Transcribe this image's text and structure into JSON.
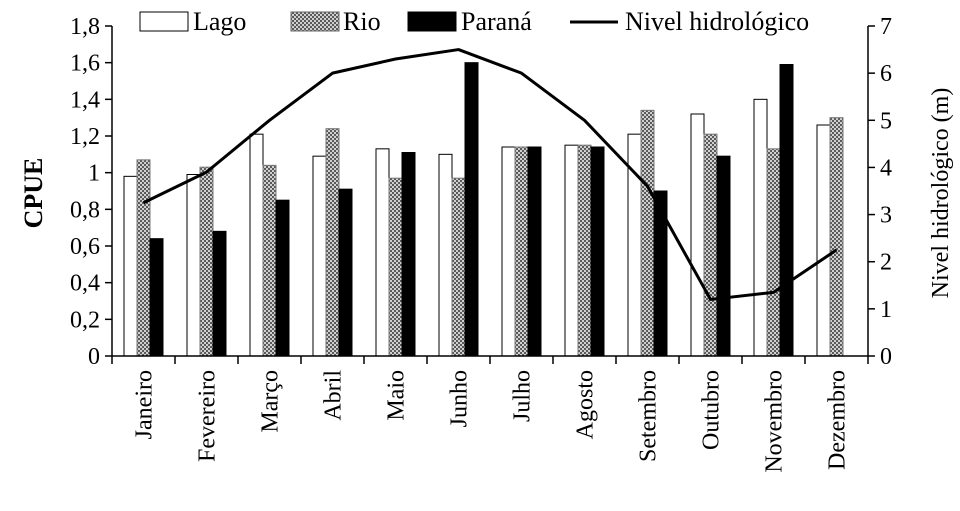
{
  "chart_data": {
    "type": "bar",
    "title": "",
    "xlabel": "",
    "ylabel": "CPUE",
    "ylabel_right": "Nivel hidrológico (m)",
    "ylim": [
      0,
      1.8
    ],
    "ylim_right": [
      0,
      7
    ],
    "yticks": [
      "0",
      "0,2",
      "0,4",
      "0,6",
      "0,8",
      "1",
      "1,2",
      "1,4",
      "1,6",
      "1,8"
    ],
    "yticks_right": [
      "0",
      "1",
      "2",
      "3",
      "4",
      "5",
      "6",
      "7"
    ],
    "legend_position": "top",
    "categories": [
      "Janeiro",
      "Fevereiro",
      "Março",
      "Abril",
      "Maio",
      "Junho",
      "Julho",
      "Agosto",
      "Setembro",
      "Outubro",
      "Novembro",
      "Dezembro"
    ],
    "series": [
      {
        "name": "Lago",
        "style": "white",
        "values": [
          0.98,
          0.99,
          1.21,
          1.09,
          1.13,
          1.1,
          1.14,
          1.15,
          1.21,
          1.32,
          1.4,
          1.26
        ]
      },
      {
        "name": "Rio",
        "style": "checker",
        "values": [
          1.07,
          1.03,
          1.04,
          1.24,
          0.97,
          0.97,
          1.14,
          1.15,
          1.34,
          1.21,
          1.13,
          1.3
        ]
      },
      {
        "name": "Paraná",
        "style": "black",
        "values": [
          0.64,
          0.68,
          0.85,
          0.91,
          1.11,
          1.6,
          1.14,
          1.14,
          0.9,
          1.09,
          1.59,
          null
        ]
      },
      {
        "name": "Nivel hidrológico",
        "type": "line",
        "axis": "right",
        "values": [
          3.25,
          3.9,
          5.0,
          6.0,
          6.3,
          6.5,
          6.0,
          5.0,
          3.6,
          1.2,
          1.35,
          2.25
        ]
      }
    ]
  }
}
